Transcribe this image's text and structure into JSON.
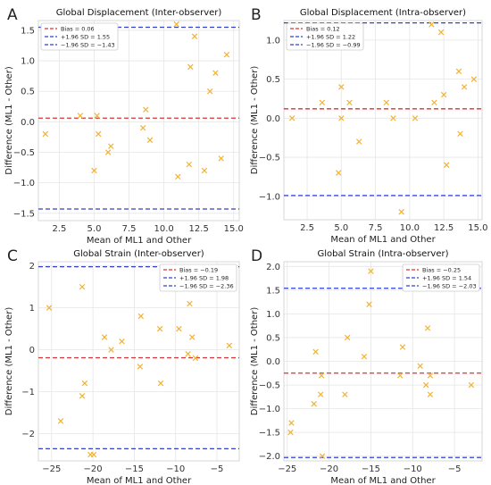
{
  "chart_data": [
    {
      "type": "scatter",
      "letter": "A",
      "title": "Global Displacement (Inter-observer)",
      "xlabel": "Mean of ML1 and Other",
      "ylabel": "Difference (ML1 - Other)",
      "xlim": [
        1.0,
        15.4
      ],
      "ylim": [
        -1.62,
        1.66
      ],
      "xticks": [
        "2.5",
        "5.0",
        "7.5",
        "10.0",
        "12.5",
        "15.0"
      ],
      "xtick_values": [
        2.5,
        5.0,
        7.5,
        10.0,
        12.5,
        15.0
      ],
      "yticks": [
        "−1.5",
        "−1.0",
        "−0.5",
        "0.0",
        "0.5",
        "1.0",
        "1.5"
      ],
      "ytick_values": [
        -1.5,
        -1.0,
        -0.5,
        0.0,
        0.5,
        1.0,
        1.5
      ],
      "grid": true,
      "legend_position": "top-left",
      "lines": [
        {
          "label": "Bias = 0.06",
          "value": 0.06,
          "color": "#e03030"
        },
        {
          "label": "+1.96 SD = 1.55",
          "value": 1.55,
          "color": "#3040d0"
        },
        {
          "label": "−1.96 SD = −1.43",
          "value": -1.43,
          "color": "#3040d0"
        }
      ],
      "points": [
        [
          1.5,
          -0.2
        ],
        [
          4.0,
          0.1
        ],
        [
          5.0,
          -0.8
        ],
        [
          5.2,
          0.1
        ],
        [
          5.3,
          -0.2
        ],
        [
          6.0,
          -0.5
        ],
        [
          6.2,
          -0.4
        ],
        [
          8.5,
          -0.1
        ],
        [
          8.7,
          0.2
        ],
        [
          9.0,
          -0.3
        ],
        [
          10.9,
          1.6
        ],
        [
          11.0,
          -0.9
        ],
        [
          11.8,
          -0.7
        ],
        [
          11.9,
          0.9
        ],
        [
          12.2,
          1.4
        ],
        [
          12.9,
          -0.8
        ],
        [
          13.3,
          0.5
        ],
        [
          13.7,
          0.8
        ],
        [
          14.1,
          -0.6
        ],
        [
          14.5,
          1.1
        ]
      ]
    },
    {
      "type": "scatter",
      "letter": "B",
      "title": "Global Displacement (Intra-observer)",
      "xlabel": "Mean of ML1 and Other",
      "ylabel": "Difference (ML1 - Other)",
      "xlim": [
        0.8,
        15.3
      ],
      "ylim": [
        -1.3,
        1.25
      ],
      "xticks": [
        "2.5",
        "5.0",
        "7.5",
        "10.0",
        "12.5",
        "15.0"
      ],
      "xtick_values": [
        2.5,
        5.0,
        7.5,
        10.0,
        12.5,
        15.0
      ],
      "yticks": [
        "−1.0",
        "−0.5",
        "0.0",
        "0.5",
        "1.0"
      ],
      "ytick_values": [
        -1.0,
        -0.5,
        0.0,
        0.5,
        1.0
      ],
      "grid": true,
      "legend_position": "top-left",
      "lines": [
        {
          "label": "Bias = 0.12",
          "value": 0.12,
          "color": "#e03030"
        },
        {
          "label": "+1.96 SD = 1.22",
          "value": 1.22,
          "color": "#3040d0"
        },
        {
          "label": "−1.96 SD = −0.99",
          "value": -0.99,
          "color": "#3040d0"
        }
      ],
      "points": [
        [
          1.4,
          0.0
        ],
        [
          3.6,
          0.2
        ],
        [
          4.8,
          -0.7
        ],
        [
          5.0,
          0.4
        ],
        [
          5.0,
          0.0
        ],
        [
          5.6,
          0.2
        ],
        [
          6.3,
          -0.3
        ],
        [
          8.3,
          0.2
        ],
        [
          8.8,
          0.0
        ],
        [
          9.4,
          -1.2
        ],
        [
          10.4,
          0.0
        ],
        [
          11.6,
          1.2
        ],
        [
          11.8,
          0.2
        ],
        [
          12.3,
          1.1
        ],
        [
          12.5,
          0.3
        ],
        [
          12.7,
          -0.6
        ],
        [
          13.6,
          0.6
        ],
        [
          13.7,
          -0.2
        ],
        [
          14.0,
          0.4
        ],
        [
          14.7,
          0.5
        ]
      ]
    },
    {
      "type": "scatter",
      "letter": "C",
      "title": "Global Strain (Inter-observer)",
      "xlabel": "Mean of ML1 and Other",
      "ylabel": "Difference (ML1 - Other)",
      "xlim": [
        -26.6,
        -2.3
      ],
      "ylim": [
        -2.65,
        2.1
      ],
      "xticks": [
        "−25",
        "−20",
        "−15",
        "−10",
        "−5"
      ],
      "xtick_values": [
        -25,
        -20,
        -15,
        -10,
        -5
      ],
      "yticks": [
        "−2",
        "−1",
        "0",
        "1",
        "2"
      ],
      "ytick_values": [
        -2,
        -1,
        0,
        1,
        2
      ],
      "grid": true,
      "legend_position": "top-right",
      "lines": [
        {
          "label": "Bias = −0.19",
          "value": -0.19,
          "color": "#e03030"
        },
        {
          "label": "+1.96 SD = 1.98",
          "value": 1.98,
          "color": "#3040d0"
        },
        {
          "label": "−1.96 SD = −2.36",
          "value": -2.36,
          "color": "#3040d0"
        }
      ],
      "points": [
        [
          -25.3,
          1.0
        ],
        [
          -23.9,
          -1.7
        ],
        [
          -21.3,
          1.5
        ],
        [
          -21.3,
          -1.1
        ],
        [
          -21.0,
          -0.8
        ],
        [
          -20.3,
          -2.5
        ],
        [
          -19.9,
          -2.5
        ],
        [
          -18.6,
          0.3
        ],
        [
          -17.8,
          0.0
        ],
        [
          -16.5,
          0.2
        ],
        [
          -14.3,
          -0.4
        ],
        [
          -14.2,
          0.8
        ],
        [
          -11.8,
          -0.8
        ],
        [
          -11.9,
          0.5
        ],
        [
          -9.6,
          0.5
        ],
        [
          -8.5,
          -0.1
        ],
        [
          -8.3,
          1.1
        ],
        [
          -8.0,
          0.3
        ],
        [
          -7.6,
          -0.2
        ],
        [
          -3.5,
          0.1
        ]
      ]
    },
    {
      "type": "scatter",
      "letter": "D",
      "title": "Global Strain (Intra-observer)",
      "xlabel": "Mean of ML1 and Other",
      "ylabel": "Difference (ML1 - Other)",
      "xlim": [
        -25.4,
        -1.7
      ],
      "ylim": [
        -2.1,
        2.1
      ],
      "xticks": [
        "−25",
        "−20",
        "−15",
        "−10",
        "−5"
      ],
      "xtick_values": [
        -25,
        -20,
        -15,
        -10,
        -5
      ],
      "yticks": [
        "−2.0",
        "−1.5",
        "−1.0",
        "−0.5",
        "0.0",
        "0.5",
        "1.0",
        "1.5",
        "2.0"
      ],
      "ytick_values": [
        -2.0,
        -1.5,
        -1.0,
        -0.5,
        0.0,
        0.5,
        1.0,
        1.5,
        2.0
      ],
      "grid": true,
      "legend_position": "top-right",
      "lines": [
        {
          "label": "Bias = −0.25",
          "value": -0.25,
          "color": "#e03030"
        },
        {
          "label": "+1.96 SD = 1.54",
          "value": 1.54,
          "color": "#3040d0"
        },
        {
          "label": "−1.96 SD = −2.03",
          "value": -2.03,
          "color": "#3040d0"
        }
      ],
      "points": [
        [
          -24.6,
          -1.5
        ],
        [
          -24.5,
          -1.3
        ],
        [
          -21.8,
          -0.9
        ],
        [
          -21.6,
          0.2
        ],
        [
          -21.0,
          -0.7
        ],
        [
          -20.9,
          -0.3
        ],
        [
          -20.8,
          -2.0
        ],
        [
          -18.1,
          -0.7
        ],
        [
          -17.8,
          0.5
        ],
        [
          -15.8,
          0.1
        ],
        [
          -15.0,
          1.9
        ],
        [
          -15.2,
          1.2
        ],
        [
          -11.5,
          -0.3
        ],
        [
          -11.2,
          0.3
        ],
        [
          -9.1,
          -0.1
        ],
        [
          -8.4,
          -0.5
        ],
        [
          -8.2,
          0.7
        ],
        [
          -7.9,
          -0.7
        ],
        [
          -7.9,
          -0.3
        ],
        [
          -3.0,
          -0.5
        ]
      ]
    }
  ]
}
